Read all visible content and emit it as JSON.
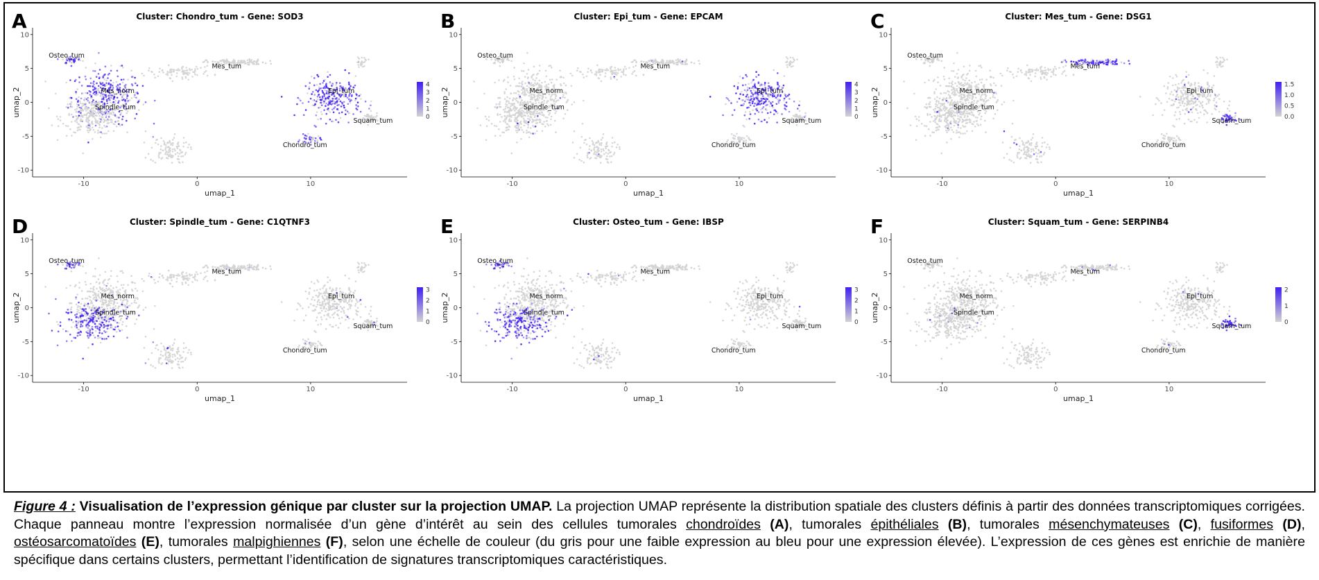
{
  "panels": [
    {
      "letter": "A",
      "title": "Cluster: Chondro_tum - Gene: SOD3",
      "legend_ticks": [
        "4",
        "3",
        "2",
        "1",
        "0"
      ],
      "legend_max": 4,
      "highlight": [
        "Osteo_tum",
        "Mes_norm",
        "Epi_tum",
        "Chondro_tum"
      ]
    },
    {
      "letter": "B",
      "title": "Cluster: Epi_tum - Gene: EPCAM",
      "legend_ticks": [
        "4",
        "3",
        "2",
        "1",
        "0"
      ],
      "legend_max": 4,
      "highlight": [
        "Epi_tum"
      ]
    },
    {
      "letter": "C",
      "title": "Cluster: Mes_tum - Gene: DSG1",
      "legend_ticks": [
        "1.5",
        "1.0",
        "0.5",
        "0.0"
      ],
      "legend_max": 1.5,
      "highlight": [
        "Mes_tum",
        "Squam_tum"
      ]
    },
    {
      "letter": "D",
      "title": "Cluster: Spindle_tum - Gene: C1QTNF3",
      "legend_ticks": [
        "3",
        "2",
        "1",
        "0"
      ],
      "legend_max": 3,
      "highlight": [
        "Spindle_tum",
        "Osteo_tum"
      ]
    },
    {
      "letter": "E",
      "title": "Cluster: Osteo_tum - Gene: IBSP",
      "legend_ticks": [
        "3",
        "2",
        "1",
        "0"
      ],
      "legend_max": 3,
      "highlight": [
        "Osteo_tum",
        "Spindle_tum"
      ]
    },
    {
      "letter": "F",
      "title": "Cluster: Squam_tum - Gene: SERPINB4",
      "legend_ticks": [
        "2",
        "1",
        "0"
      ],
      "legend_max": 2,
      "highlight": [
        "Squam_tum"
      ]
    }
  ],
  "axes": {
    "xlabel": "umap_1",
    "ylabel": "umap_2",
    "xticks": [
      "-10",
      "0",
      "10"
    ],
    "yticks": [
      "10",
      "5",
      "0",
      "-5",
      "-10"
    ]
  },
  "clusters": [
    "Osteo_tum",
    "Mes_tum",
    "Mes_norm",
    "Spindle_tum",
    "Epi_tum",
    "Squam_tum",
    "Chondro_tum"
  ],
  "colors": {
    "low": "#d3d3d3",
    "high": "#3f1ff2",
    "frame": "#000000"
  },
  "caption": {
    "figure_label": "Figure 4 :",
    "title": "Visualisation de l’expression génique par cluster sur la projection UMAP.",
    "text1": " La projection UMAP représente la distribution spatiale des clusters définis à partir des données transcriptomiques corrigées. Chaque panneau montre l’expression normalisée d’un gène d’intérêt au sein des cellules tumorales ",
    "term_a": "chondroïdes",
    "ref_a": "(A)",
    "text2": ", tumorales ",
    "term_b": "épithéliales",
    "ref_b": "(B)",
    "text3": ", tumorales ",
    "term_c": "mésenchymateuses",
    "ref_c": "(C)",
    "text4": ", ",
    "term_d": "fusiformes",
    "ref_d": "(D)",
    "text5": ", ",
    "term_e": "ostéosarcomatoïdes",
    "ref_e": "(E)",
    "text6": ", tumorales ",
    "term_f": "malpighiennes",
    "ref_f": "(F)",
    "text7": ", selon une échelle de couleur (du gris pour une faible expression au bleu pour une expression élevée). L’expression de ces gènes est enrichie de manière spécifique dans certains clusters, permettant l’identification de signatures transcriptomiques caractéristiques."
  }
}
